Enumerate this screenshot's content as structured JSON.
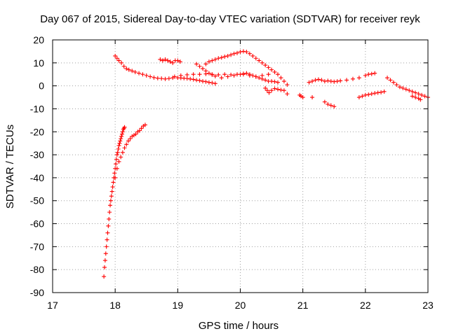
{
  "chart_data": {
    "type": "scatter",
    "title": "Day 067 of 2015, Sidereal Day-to-day VTEC variation (SDTVAR) for receiver reyk",
    "xlabel": "GPS time / hours",
    "ylabel": "SDTVAR / TECUs",
    "xlim": [
      17,
      23
    ],
    "ylim": [
      -90,
      20
    ],
    "xticks": [
      "17",
      "18",
      "19",
      "20",
      "21",
      "22",
      "23"
    ],
    "yticks": [
      "20",
      "10",
      "0",
      "-10",
      "-20",
      "-30",
      "-40",
      "-50",
      "-60",
      "-70",
      "-80",
      "-90"
    ],
    "grid": true,
    "marker": "+",
    "color": "#ff0000",
    "series": [
      {
        "name": "arc-rise-1",
        "x": [
          17.82,
          17.83,
          17.84,
          17.85,
          17.86,
          17.87,
          17.88,
          17.89,
          17.9,
          17.91,
          17.92,
          17.93,
          17.94,
          17.95,
          17.96,
          17.97,
          17.98,
          17.99,
          18.0,
          18.01,
          18.02,
          18.03,
          18.04,
          18.05,
          18.06,
          18.07,
          18.08,
          18.09,
          18.1,
          18.11,
          18.12,
          18.13,
          18.14,
          18.15
        ],
        "y": [
          -83,
          -79,
          -76,
          -73,
          -70,
          -67,
          -64,
          -61,
          -58,
          -55,
          -52,
          -50,
          -48,
          -46,
          -44,
          -42,
          -40,
          -38,
          -36,
          -34,
          -32,
          -30,
          -29,
          -27.5,
          -26,
          -25,
          -24,
          -23,
          -22,
          -21,
          -20,
          -19,
          -18.5,
          -18
        ]
      },
      {
        "name": "arc-rise-2",
        "x": [
          18.0,
          18.03,
          18.06,
          18.09,
          18.12,
          18.15,
          18.18,
          18.21,
          18.24,
          18.27,
          18.3,
          18.33,
          18.36,
          18.39,
          18.42,
          18.45,
          18.48
        ],
        "y": [
          -40,
          -36,
          -33,
          -31,
          -29,
          -27,
          -25.5,
          -24,
          -23,
          -22,
          -21.5,
          -21,
          -20,
          -19.5,
          -18.5,
          -17.5,
          -17
        ]
      },
      {
        "name": "arc-early",
        "x": [
          18.0,
          18.03,
          18.06,
          18.1,
          18.14,
          18.18,
          18.22,
          18.27,
          18.32,
          18.38,
          18.44,
          18.5,
          18.56,
          18.62,
          18.68,
          18.74,
          18.8,
          18.86,
          18.92
        ],
        "y": [
          13,
          12,
          11,
          10,
          8.5,
          7.5,
          7,
          6.5,
          6,
          5.5,
          5,
          4.5,
          4,
          3.6,
          3.3,
          3.2,
          3.0,
          3.2,
          3.5
        ]
      },
      {
        "name": "arc-1845",
        "x": [
          18.72,
          18.76,
          18.8,
          18.84,
          18.88,
          18.92,
          18.96,
          19.0,
          19.04
        ],
        "y": [
          11.5,
          11,
          11.5,
          11,
          10.5,
          10,
          11,
          11,
          10.5
        ]
      },
      {
        "name": "arc-band",
        "x": [
          18.95,
          19.05,
          19.15,
          19.25,
          19.35,
          19.45,
          19.55,
          19.65,
          19.75,
          19.85,
          19.95,
          20.05,
          20.15,
          20.25,
          20.35,
          20.45
        ],
        "y": [
          4,
          4.5,
          4.8,
          5,
          5,
          5.2,
          5,
          4.8,
          5,
          4.8,
          5,
          5,
          4.5,
          4,
          4.5,
          5
        ]
      },
      {
        "name": "arc-falling",
        "x": [
          19.0,
          19.05,
          19.1,
          19.15,
          19.2,
          19.25,
          19.3,
          19.35,
          19.4,
          19.45,
          19.5,
          19.55,
          19.6
        ],
        "y": [
          3.5,
          3.4,
          3.3,
          3.2,
          3,
          2.8,
          2.5,
          2.3,
          2.0,
          1.8,
          1.5,
          1.3,
          1.0
        ]
      },
      {
        "name": "arc-hump",
        "x": [
          19.3,
          19.35,
          19.4,
          19.45,
          19.5,
          19.55,
          19.6,
          19.7,
          19.8,
          19.9,
          20.0,
          20.05,
          20.1,
          20.15,
          20.2,
          20.25,
          20.3,
          20.35,
          20.4,
          20.45,
          20.5,
          20.55,
          20.6
        ],
        "y": [
          9.5,
          8.5,
          7.5,
          6.5,
          5.5,
          4.8,
          4.2,
          3.5,
          4.0,
          4.5,
          5.0,
          5.3,
          5.5,
          5,
          4.5,
          4.0,
          3.5,
          3.0,
          2.5,
          2.0,
          2.0,
          1.8,
          1.5
        ]
      },
      {
        "name": "arc-peak",
        "x": [
          19.45,
          19.5,
          19.55,
          19.6,
          19.65,
          19.7,
          19.75,
          19.8,
          19.85,
          19.9,
          19.95,
          20.0,
          20.05,
          20.1,
          20.15,
          20.2,
          20.25,
          20.3,
          20.35,
          20.4,
          20.45,
          20.5,
          20.55,
          20.6,
          20.65,
          20.7,
          20.75
        ],
        "y": [
          9.5,
          10.5,
          11,
          11.5,
          12,
          12.3,
          12.7,
          13,
          13.5,
          14,
          14.3,
          14.8,
          15,
          14.8,
          14,
          13,
          12,
          11,
          10,
          9,
          8,
          7,
          6,
          5,
          3.5,
          2,
          0.5
        ]
      },
      {
        "name": "arc-dip",
        "x": [
          20.4,
          20.43,
          20.46,
          20.5,
          20.55,
          20.6,
          20.65,
          20.7,
          20.75
        ],
        "y": [
          -1,
          -2,
          -3,
          -2,
          -1.2,
          -1.5,
          -1.8,
          -2.0,
          -3.5
        ]
      },
      {
        "name": "arc-21",
        "x": [
          20.95,
          20.97,
          21.0,
          21.15
        ],
        "y": [
          -4,
          -4.5,
          -5,
          -5
        ]
      },
      {
        "name": "arc-2138",
        "x": [
          21.35,
          21.4,
          21.45,
          21.5
        ],
        "y": [
          -7,
          -8,
          -8.5,
          -9
        ]
      },
      {
        "name": "arc-mid",
        "x": [
          21.1,
          21.15,
          21.2,
          21.25,
          21.3,
          21.35,
          21.4,
          21.45,
          21.5,
          21.55,
          21.6,
          21.7,
          21.8,
          21.9,
          22.0,
          22.05,
          22.1,
          22.15
        ],
        "y": [
          1.5,
          2,
          2.5,
          2.8,
          2.5,
          2.0,
          2.2,
          2.0,
          1.8,
          2.0,
          2.2,
          2.5,
          3,
          3.5,
          4.5,
          5,
          5.2,
          5.5
        ]
      },
      {
        "name": "arc-2210",
        "x": [
          21.9,
          21.95,
          22.0,
          22.05,
          22.1,
          22.15,
          22.2,
          22.25,
          22.3
        ],
        "y": [
          -5,
          -4.5,
          -4.0,
          -3.8,
          -3.5,
          -3.2,
          -3.0,
          -2.8,
          -2.5
        ]
      },
      {
        "name": "arc-late",
        "x": [
          22.35,
          22.4,
          22.45,
          22.5,
          22.55,
          22.6,
          22.65,
          22.7,
          22.75,
          22.8,
          22.85,
          22.9,
          22.95,
          23.0
        ],
        "y": [
          3.5,
          2.5,
          1.5,
          0.5,
          -0.5,
          -1.0,
          -1.5,
          -2.0,
          -2.5,
          -3.0,
          -3.5,
          -4,
          -4.5,
          -5
        ]
      },
      {
        "name": "arc-2283",
        "x": [
          22.75,
          22.8,
          22.85,
          22.88
        ],
        "y": [
          -4.5,
          -5.0,
          -5.5,
          -6
        ]
      }
    ]
  }
}
